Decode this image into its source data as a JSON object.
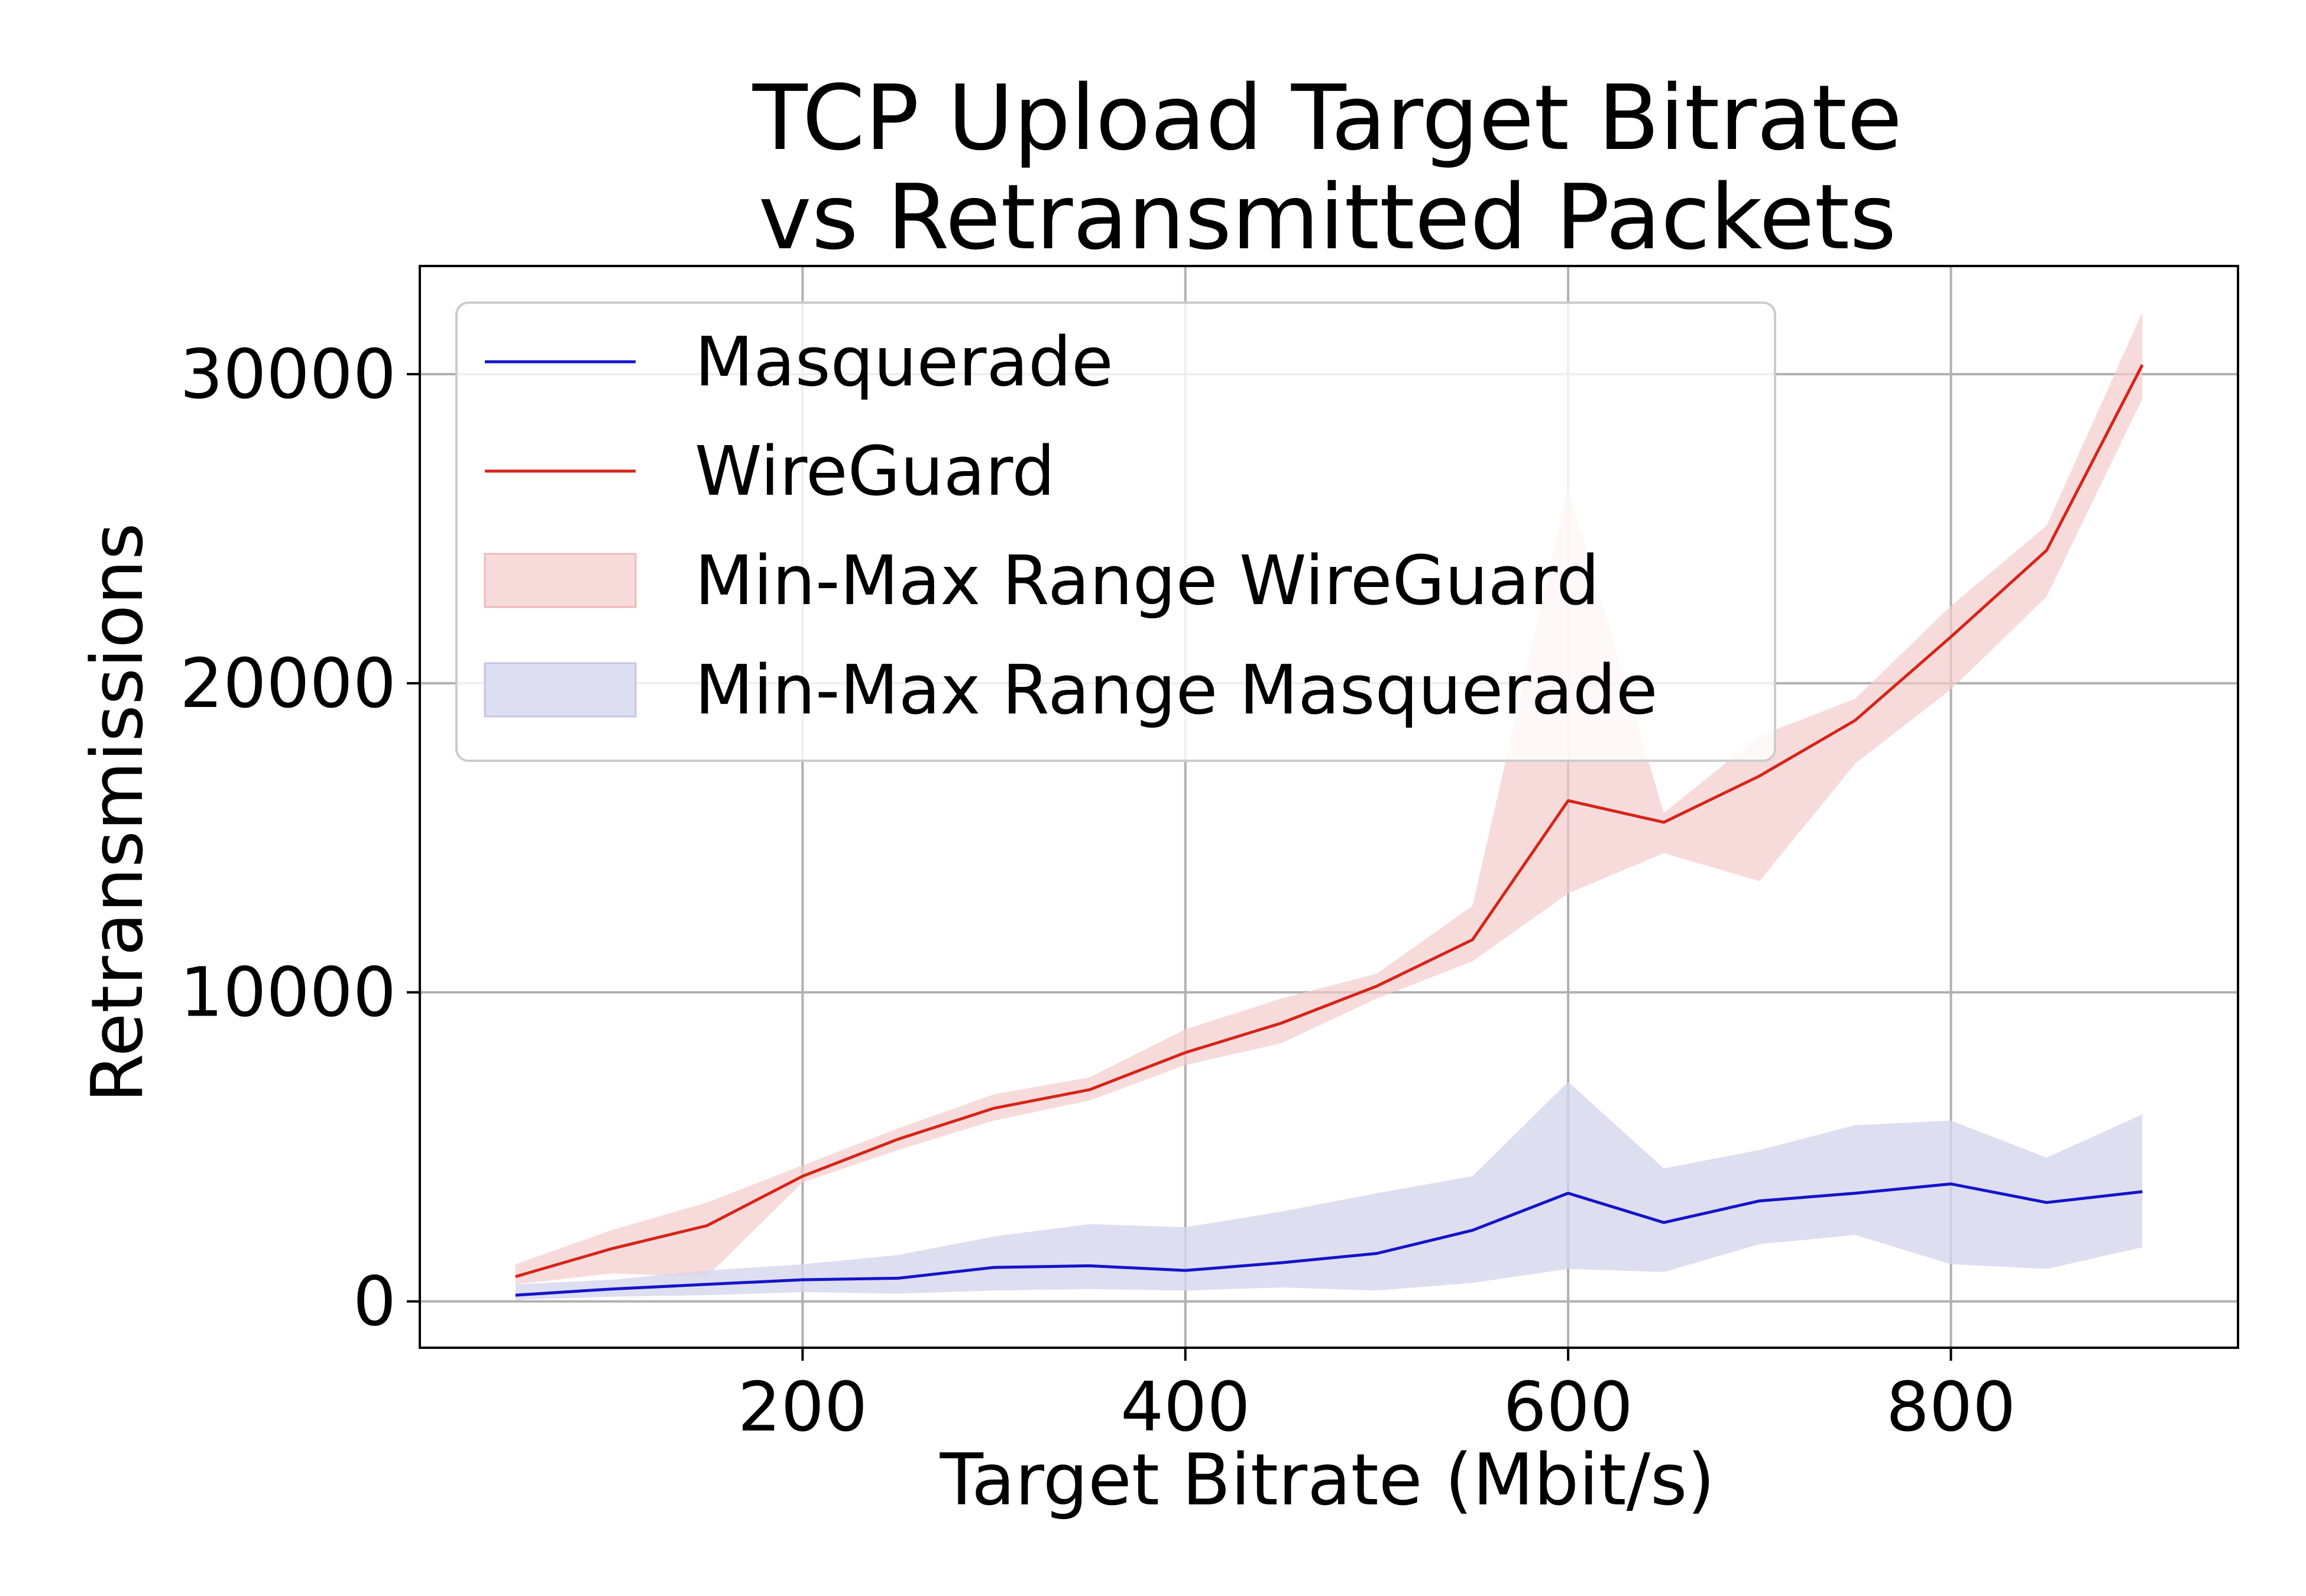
{
  "chart_data": {
    "type": "line",
    "title": [
      "TCP Upload Target Bitrate",
      "vs Retransmitted Packets"
    ],
    "xlabel": "Target Bitrate (Mbit/s)",
    "ylabel": "Retransmissions",
    "xlim": [
      0,
      950
    ],
    "ylim": [
      -1500,
      33500
    ],
    "xticks": [
      200,
      400,
      600,
      800
    ],
    "yticks": [
      0,
      10000,
      20000,
      30000
    ],
    "grid": true,
    "legend_position": "upper-left",
    "x": [
      50,
      100,
      150,
      200,
      250,
      300,
      350,
      400,
      450,
      500,
      550,
      600,
      650,
      700,
      750,
      800,
      850,
      900
    ],
    "series": [
      {
        "name": "Masquerade",
        "color": "#1414c8",
        "values": [
          200,
          400,
          550,
          700,
          750,
          1100,
          1150,
          1000,
          1250,
          1550,
          2300,
          3500,
          2550,
          3250,
          3500,
          3800,
          3200,
          3550
        ]
      },
      {
        "name": "WireGuard",
        "color": "#d62418",
        "values": [
          800,
          1700,
          2450,
          4050,
          5250,
          6250,
          6850,
          8050,
          9000,
          10200,
          11700,
          16200,
          15500,
          17000,
          18800,
          21500,
          24300,
          30300
        ]
      }
    ],
    "bands": [
      {
        "name": "Min-Max Range WireGuard",
        "color": "#f4cccc",
        "lower": [
          550,
          900,
          800,
          3850,
          4900,
          5850,
          6500,
          7650,
          8350,
          9800,
          11000,
          13200,
          14500,
          13600,
          17400,
          19800,
          22800,
          29200
        ],
        "upper": [
          1200,
          2300,
          3200,
          4400,
          5600,
          6700,
          7250,
          8800,
          9800,
          10600,
          12800,
          26300,
          15800,
          18300,
          19500,
          22500,
          25100,
          32000
        ]
      },
      {
        "name": "Min-Max Range Masquerade",
        "color": "#d6d6ee",
        "lower": [
          50,
          150,
          200,
          300,
          250,
          350,
          400,
          350,
          450,
          350,
          600,
          1050,
          950,
          1850,
          2150,
          1200,
          1050,
          1750
        ],
        "upper": [
          550,
          700,
          1000,
          1200,
          1500,
          2100,
          2500,
          2400,
          2900,
          3500,
          4050,
          7100,
          4300,
          4900,
          5700,
          5850,
          4650,
          6050
        ]
      }
    ],
    "legend": [
      "Masquerade",
      "WireGuard",
      "Min-Max Range WireGuard",
      "Min-Max Range Masquerade"
    ]
  }
}
